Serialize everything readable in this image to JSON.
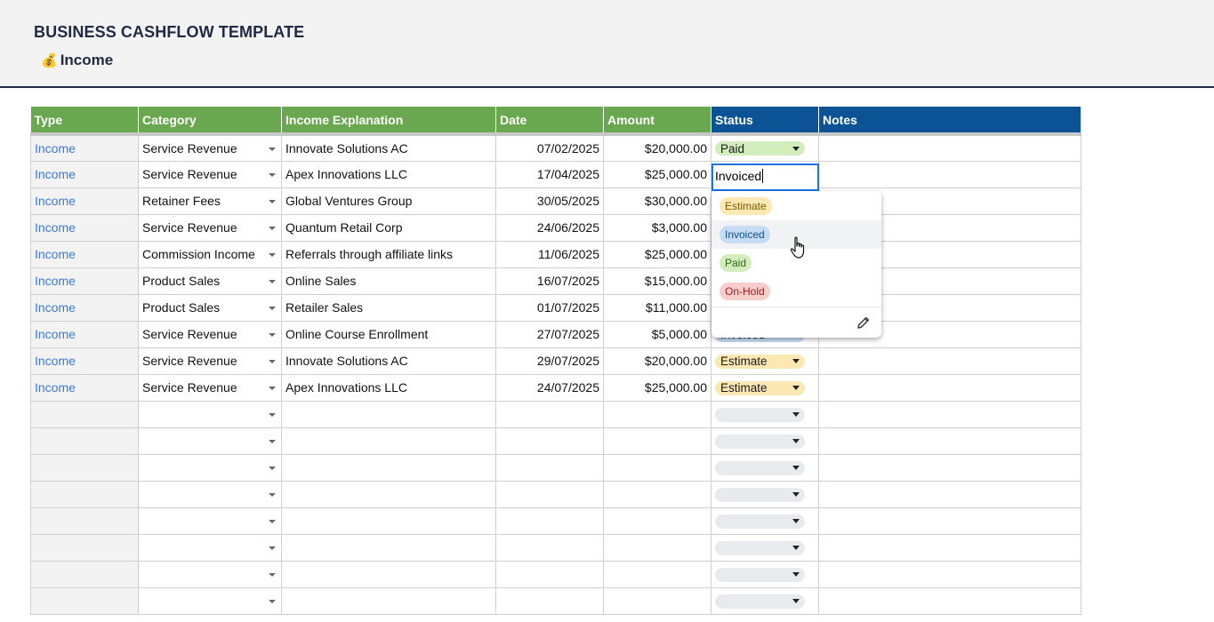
{
  "header": {
    "title": "BUSINESS CASHFLOW TEMPLATE",
    "subtitle": "Income",
    "subtitle_icon": "money-bag-icon"
  },
  "columns": [
    "Type",
    "Category",
    "Income Explanation",
    "Date",
    "Amount",
    "Status",
    "Notes"
  ],
  "rows": [
    {
      "type": "Income",
      "category": "Service Revenue",
      "explanation": "Innovate Solutions AC",
      "date": "07/02/2025",
      "amount": "$20,000.00",
      "status": "Paid"
    },
    {
      "type": "Income",
      "category": "Service Revenue",
      "explanation": "Apex Innovations LLC",
      "date": "17/04/2025",
      "amount": "$25,000.00",
      "status": "Invoiced"
    },
    {
      "type": "Income",
      "category": "Retainer Fees",
      "explanation": "Global Ventures Group",
      "date": "30/05/2025",
      "amount": "$30,000.00",
      "status": ""
    },
    {
      "type": "Income",
      "category": "Service Revenue",
      "explanation": "Quantum Retail Corp",
      "date": "24/06/2025",
      "amount": "$3,000.00",
      "status": ""
    },
    {
      "type": "Income",
      "category": "Commission Income",
      "explanation": "Referrals through affiliate links",
      "date": "11/06/2025",
      "amount": "$25,000.00",
      "status": ""
    },
    {
      "type": "Income",
      "category": "Product Sales",
      "explanation": "Online Sales",
      "date": "16/07/2025",
      "amount": "$15,000.00",
      "status": ""
    },
    {
      "type": "Income",
      "category": "Product Sales",
      "explanation": "Retailer Sales",
      "date": "01/07/2025",
      "amount": "$11,000.00",
      "status": ""
    },
    {
      "type": "Income",
      "category": "Service Revenue",
      "explanation": "Online Course Enrollment",
      "date": "27/07/2025",
      "amount": "$5,000.00",
      "status": "Invoiced"
    },
    {
      "type": "Income",
      "category": "Service Revenue",
      "explanation": "Innovate Solutions AC",
      "date": "29/07/2025",
      "amount": "$20,000.00",
      "status": "Estimate"
    },
    {
      "type": "Income",
      "category": "Service Revenue",
      "explanation": "Apex Innovations LLC",
      "date": "24/07/2025",
      "amount": "$25,000.00",
      "status": "Estimate"
    }
  ],
  "empty_rows": 8,
  "editor": {
    "value": "Invoiced"
  },
  "dropdown": {
    "options": [
      {
        "label": "Estimate",
        "bg": "#fce8b2",
        "fg": "#7a5b00"
      },
      {
        "label": "Invoiced",
        "bg": "#c6dcf5",
        "fg": "#0b4f8a"
      },
      {
        "label": "Paid",
        "bg": "#d4edbc",
        "fg": "#2b6a1a"
      },
      {
        "label": "On-Hold",
        "bg": "#f8cecc",
        "fg": "#a01d1d"
      }
    ],
    "hovered": "Invoiced",
    "edit_icon": "pencil-icon"
  },
  "status_colors": {
    "Paid": "#d4edbc",
    "Invoiced": "#c6dcf5",
    "Estimate": "#fce8b2",
    "On-Hold": "#f8cecc",
    "empty": "#e8eaed"
  },
  "colors": {
    "header_green": "#6aa84f",
    "header_blue": "#0b5394",
    "type_link": "#3c78d8",
    "title": "#1f2a44"
  }
}
